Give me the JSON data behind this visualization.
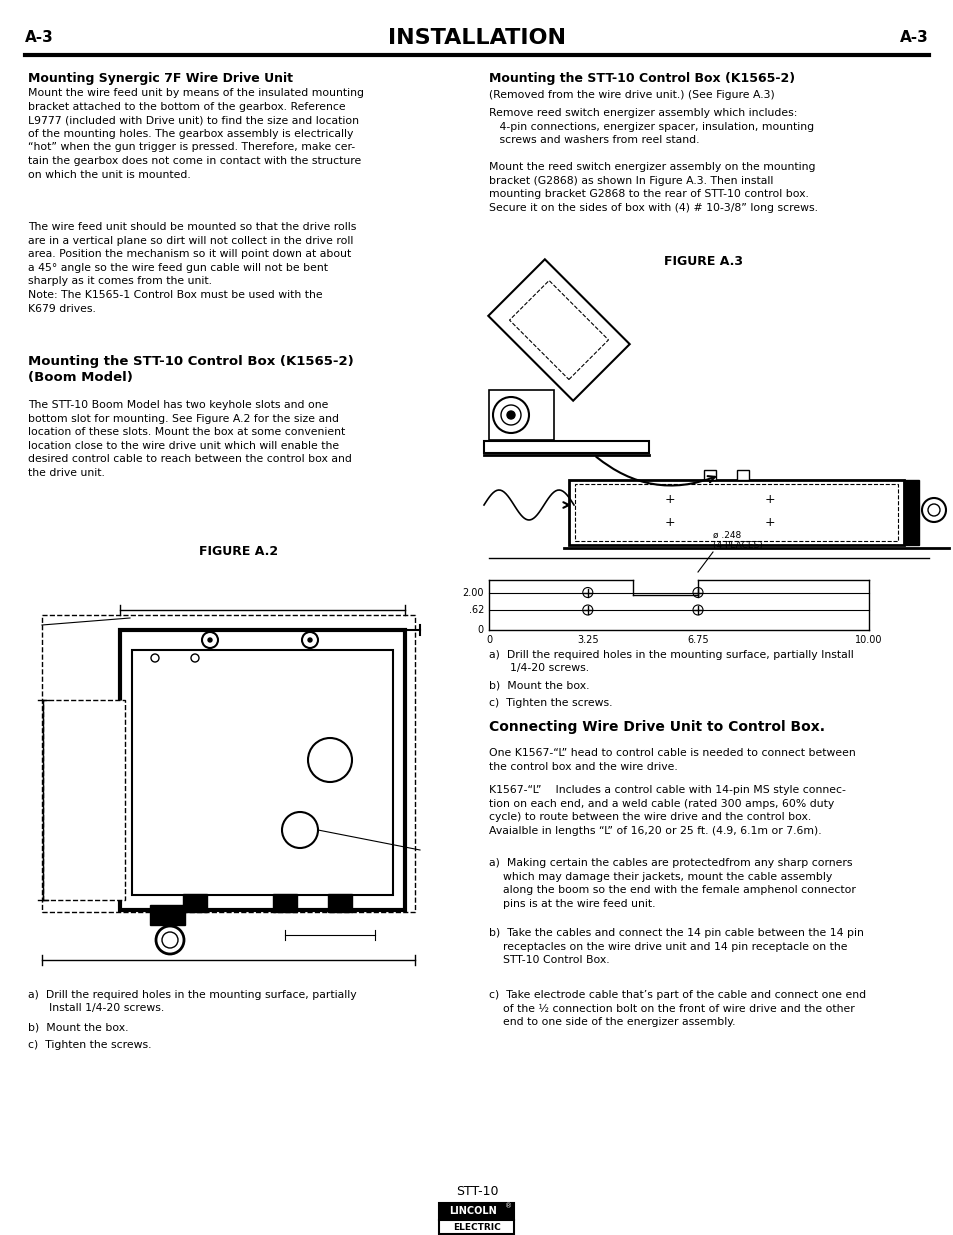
{
  "page_label_left": "A-3",
  "page_label_right": "A-3",
  "header_title": "INSTALLATION",
  "bg_color": "#ffffff",
  "section1_title": "Mounting Synergic 7F Wire Drive Unit",
  "section1_body1": "Mount the wire feed unit by means of the insulated mounting\nbracket attached to the bottom of the gearbox. Reference\nL9777 (included with Drive unit) to find the size and location\nof the mounting holes. The gearbox assembly is electrically\n“hot” when the gun trigger is pressed. Therefore, make cer-\ntain the gearbox does not come in contact with the structure\non which the unit is mounted.",
  "section1_body2": "The wire feed unit should be mounted so that the drive rolls\nare in a vertical plane so dirt will not collect in the drive roll\narea. Position the mechanism so it will point down at about\na 45° angle so the wire feed gun cable will not be bent\nsharply as it comes from the unit.\nNote: The K1565-1 Control Box must be used with the\nK679 drives.",
  "section2_title": "Mounting the STT-10 Control Box (K1565-2)\n(Boom Model)",
  "section2_body": "The STT-10 Boom Model has two keyhole slots and one\nbottom slot for mounting. See Figure A.2 for the size and\nlocation of these slots. Mount the box at some convenient\nlocation close to the wire drive unit which will enable the\ndesired control cable to reach between the control box and\nthe drive unit.",
  "figure_a2_label": "FIGURE A.2",
  "fig2_instructions_a": "a)  Drill the required holes in the mounting surface, partially\n      Install 1/4-20 screws.",
  "fig2_instructions_b": "b)  Mount the box.",
  "fig2_instructions_c": "c)  Tighten the screws.",
  "right_section1_title": "Mounting the STT-10 Control Box (K1565-2)",
  "right_section1_sub": "(Removed from the wire drive unit.) (See Figure A.3)",
  "right_section1_body": "Remove reed switch energizer assembly which includes:\n   4-pin connections, energizer spacer, insulation, mounting\n   screws and washers from reel stand.",
  "right_section2_body": "Mount the reed switch energizer assembly on the mounting\nbracket (G2868) as shown In Figure A.3. Then install\nmounting bracket G2868 to the rear of STT-10 control box.\nSecure it on the sides of box with (4) # 10-3/8” long screws.",
  "figure_a3_label": "FIGURE A.3",
  "right_fig_instructions_a": "a)  Drill the required holes in the mounting surface, partially Install\n      1/4-20 screws.",
  "right_fig_instructions_b": "b)  Mount the box.",
  "right_fig_instructions_c": "c)  Tighten the screws.",
  "section3_title": "Connecting Wire Drive Unit to Control Box.",
  "section3_body1": "One K1567-“L” head to control cable is needed to connect between\nthe control box and the wire drive.",
  "section3_body2": "K1567-“L”    Includes a control cable with 14-pin MS style connec-\ntion on each end, and a weld cable (rated 300 amps, 60% duty\ncycle) to route between the wire drive and the control box.\nAvaialble in lengths “L” of 16,20 or 25 ft. (4.9, 6.1m or 7.6m).",
  "section3_list_a": "a)  Making certain the cables are protectedfrom any sharp corners\n    which may damage their jackets, mount the cable assembly\n    along the boom so the end with the female amphenol connector\n    pins is at the wire feed unit.",
  "section3_list_b": "b)  Take the cables and connect the 14 pin cable between the 14 pin\n    receptacles on the wire drive unit and 14 pin receptacle on the\n    STT-10 Control Box.",
  "section3_list_c": "c)  Take electrode cable that’s part of the cable and connect one end\n    of the ½ connection bolt on the front of wire drive and the other\n    end to one side of the energizer assembly.",
  "footer_model": "STT-10",
  "footer_brand_top": "LINCOLN",
  "footer_brand_bottom": "ELECTRIC"
}
